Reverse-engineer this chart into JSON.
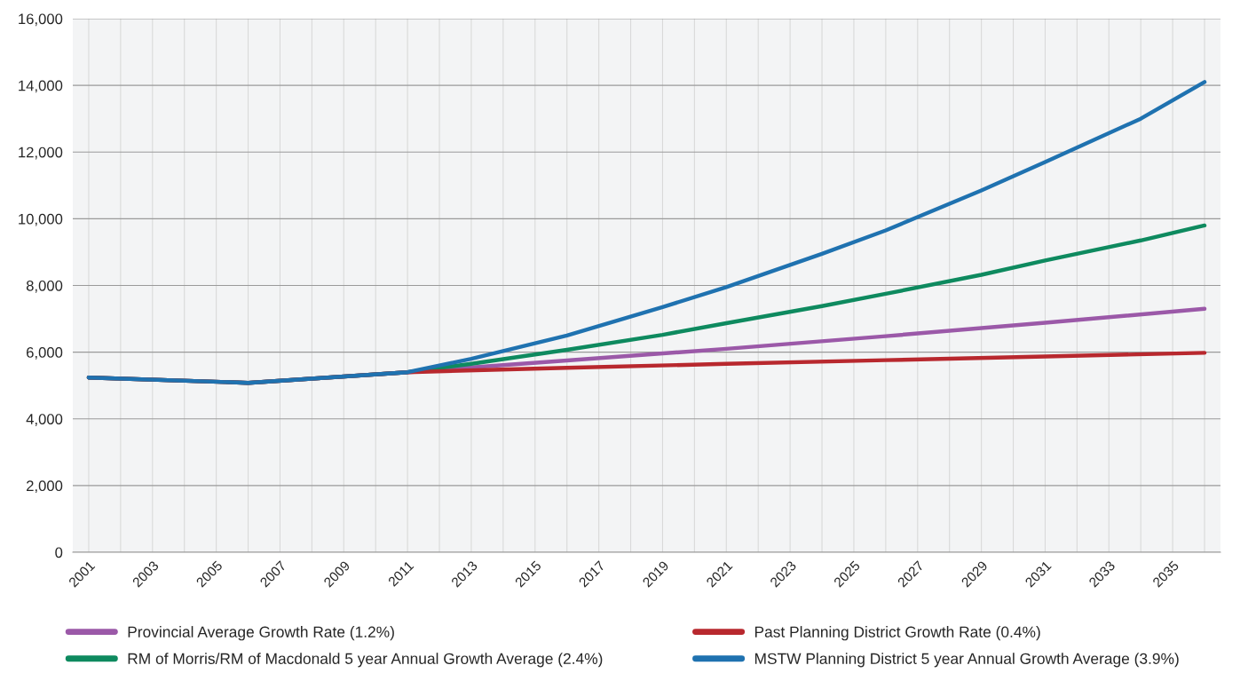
{
  "chart_data": {
    "type": "line",
    "series": [
      {
        "name": "Provincial Average Growth Rate (1.2%)",
        "color": "#9b59a8",
        "x": [
          2001,
          2006,
          2011,
          2016,
          2021,
          2026,
          2031,
          2036
        ],
        "values": [
          5240,
          5080,
          5400,
          5750,
          6100,
          6480,
          6880,
          7300
        ]
      },
      {
        "name": "RM of Morris/RM of Macdonald 5 year Annual Growth Average (2.4%)",
        "color": "#0e8a5f",
        "x": [
          2001,
          2006,
          2011,
          2013,
          2016,
          2019,
          2021,
          2024,
          2026,
          2029,
          2031,
          2034,
          2036
        ],
        "values": [
          5240,
          5080,
          5400,
          5650,
          6070,
          6520,
          6870,
          7380,
          7750,
          8320,
          8750,
          9350,
          9800
        ]
      },
      {
        "name": "Past Planning District Growth Rate (0.4%)",
        "color": "#b8282e",
        "x": [
          2001,
          2006,
          2011,
          2016,
          2021,
          2026,
          2031,
          2036
        ],
        "values": [
          5240,
          5080,
          5400,
          5530,
          5650,
          5760,
          5870,
          5980
        ]
      },
      {
        "name": "MSTW Planning District 5 year Annual Growth Average (3.9%)",
        "color": "#1f72b0",
        "x": [
          2001,
          2006,
          2011,
          2013,
          2016,
          2019,
          2021,
          2024,
          2026,
          2029,
          2031,
          2034,
          2036
        ],
        "values": [
          5240,
          5080,
          5400,
          5800,
          6500,
          7350,
          7950,
          8950,
          9650,
          10850,
          11700,
          13000,
          14100
        ]
      }
    ],
    "xlim": [
      2000.5,
      2036.5
    ],
    "xticks": [
      2001,
      {
        "value": 2002,
        "label": null
      },
      2003,
      {
        "value": 2004,
        "label": null
      },
      2005,
      {
        "value": 2006,
        "label": null
      },
      2007,
      {
        "value": 2008,
        "label": null
      },
      2009,
      {
        "value": 2010,
        "label": null
      },
      2011,
      {
        "value": 2012,
        "label": null
      },
      2013,
      {
        "value": 2014,
        "label": null
      },
      2015,
      {
        "value": 2016,
        "label": null
      },
      2017,
      {
        "value": 2018,
        "label": null
      },
      2019,
      {
        "value": 2020,
        "label": null
      },
      2021,
      {
        "value": 2022,
        "label": null
      },
      2023,
      {
        "value": 2024,
        "label": null
      },
      2025,
      {
        "value": 2026,
        "label": null
      },
      2027,
      {
        "value": 2028,
        "label": null
      },
      2029,
      {
        "value": 2030,
        "label": null
      },
      2031,
      {
        "value": 2032,
        "label": null
      },
      2033,
      {
        "value": 2034,
        "label": null
      },
      2035,
      {
        "value": 2036,
        "label": null
      }
    ],
    "ylim": [
      0,
      16000
    ],
    "yticks": [
      {
        "value": 0,
        "label": "0"
      },
      {
        "value": 2000,
        "label": "2,000"
      },
      {
        "value": 4000,
        "label": "4,000"
      },
      {
        "value": 6000,
        "label": "6,000"
      },
      {
        "value": 8000,
        "label": "8,000"
      },
      {
        "value": 10000,
        "label": "10,000"
      },
      {
        "value": 12000,
        "label": "12,000"
      },
      {
        "value": 14000,
        "label": "14,000"
      },
      {
        "value": 16000,
        "label": "16,000"
      }
    ],
    "grid": true,
    "legend": "bottom",
    "marker": "none",
    "line_style": "solid"
  }
}
